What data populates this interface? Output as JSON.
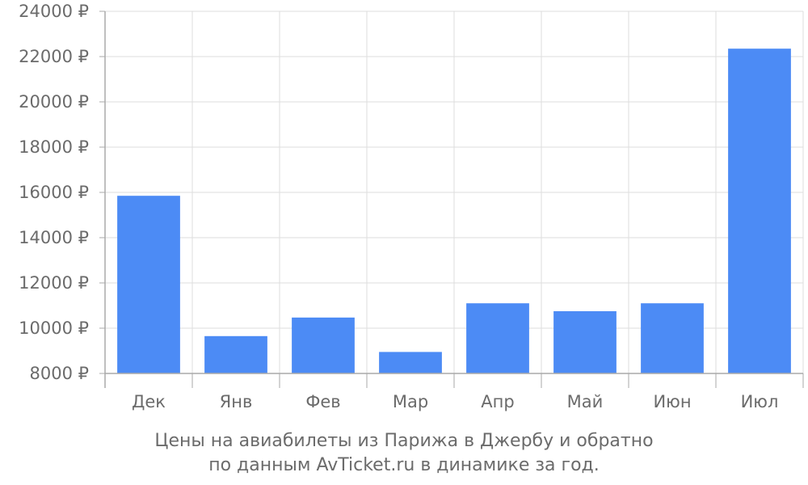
{
  "chart_data": {
    "type": "bar",
    "categories": [
      "Дек",
      "Янв",
      "Фев",
      "Мар",
      "Апр",
      "Май",
      "Июн",
      "Июл"
    ],
    "values": [
      15850,
      9650,
      10470,
      8950,
      11100,
      10750,
      11100,
      22350
    ],
    "ylim": [
      8000,
      24000
    ],
    "yticks": [
      8000,
      10000,
      12000,
      14000,
      16000,
      18000,
      20000,
      22000,
      24000
    ],
    "ytick_labels": [
      "8000 ₽",
      "10000 ₽",
      "12000 ₽",
      "14000 ₽",
      "16000 ₽",
      "18000 ₽",
      "20000 ₽",
      "22000 ₽",
      "24000 ₽"
    ],
    "grid": true,
    "bar_color": "#4c8bf5",
    "grid_color": "#dddddd",
    "axis_color": "#aaaaaa"
  },
  "caption": {
    "line1": "Цены на авиабилеты из Парижа в Джербу и обратно",
    "line2": "по данным AvTicket.ru в динамике за год."
  }
}
